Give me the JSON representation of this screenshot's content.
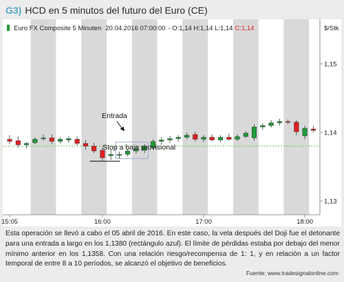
{
  "figure": {
    "number": "G3)",
    "title": "HCD en 5 minutos del futuro del Euro (CE)"
  },
  "chart_header": {
    "instrument": "Euro FX Composite 5 Minuten",
    "datetime": "20.04.2016 07:00:00",
    "ohlc_text": "- O:1,14 H:1,14 L:1,14",
    "close_text": "C:1,14",
    "unit": "$/Stk",
    "close_color": "#e02020"
  },
  "annotations": {
    "entry": "Entrada",
    "stop": "Stop a baja provisional"
  },
  "caption": "Esta operación se llevó a cabo el 05 abril de 2016. En este caso, la vela después del Doji fue el detonante para una entrada a largo en los 1,1380 (rectángulo azul). El límite de pérdidas estaba por debajo del menor mínimo anterior en los 1,1358. Con una relación riesgo/recompensa de 1: 1, y en relación a un factor temporal de entre 8 a 10 períodos, se alcanzó el objetivo de beneficios.",
  "source": "Fuente: www.tradesignalonline.com",
  "colors": {
    "up": "#1e9c3a",
    "down": "#e02020",
    "shade": "#d9d9d9",
    "reference_line": "#6fbf5a",
    "entry_box": "#9aa9d6"
  },
  "chart_data": {
    "type": "candlestick",
    "ylim": [
      1.128,
      1.1535
    ],
    "y_ticks": [
      1.13,
      1.14,
      1.15
    ],
    "y_tick_labels": [
      "1,13",
      "1,14",
      "1,15"
    ],
    "x_tick_labels": [
      "15:05",
      "16:00",
      "17:00",
      "18:00"
    ],
    "x_tick_bar_index": [
      0,
      11,
      23,
      35
    ],
    "shaded_bar_ranges": [
      [
        3,
        5
      ],
      [
        9,
        11
      ],
      [
        15,
        17
      ],
      [
        21,
        23
      ],
      [
        27,
        29
      ],
      [
        33,
        35
      ]
    ],
    "reference_level": 1.138,
    "stop_level": 1.1358,
    "entry_box_bars": [
      13,
      16
    ],
    "entry_box_range": [
      1.1362,
      1.1386
    ],
    "candles": [
      {
        "o": 1.139,
        "h": 1.1396,
        "l": 1.1383,
        "c": 1.1387
      },
      {
        "o": 1.1388,
        "h": 1.1394,
        "l": 1.1378,
        "c": 1.1382
      },
      {
        "o": 1.1382,
        "h": 1.1386,
        "l": 1.1377,
        "c": 1.1384
      },
      {
        "o": 1.1385,
        "h": 1.1393,
        "l": 1.1383,
        "c": 1.139
      },
      {
        "o": 1.1391,
        "h": 1.1397,
        "l": 1.1388,
        "c": 1.1392
      },
      {
        "o": 1.1392,
        "h": 1.1397,
        "l": 1.1383,
        "c": 1.1387
      },
      {
        "o": 1.1387,
        "h": 1.1393,
        "l": 1.1384,
        "c": 1.139
      },
      {
        "o": 1.1389,
        "h": 1.1394,
        "l": 1.1385,
        "c": 1.1391
      },
      {
        "o": 1.139,
        "h": 1.1394,
        "l": 1.1381,
        "c": 1.1384
      },
      {
        "o": 1.1384,
        "h": 1.1389,
        "l": 1.1375,
        "c": 1.138
      },
      {
        "o": 1.138,
        "h": 1.1385,
        "l": 1.137,
        "c": 1.1373
      },
      {
        "o": 1.1374,
        "h": 1.1378,
        "l": 1.1358,
        "c": 1.1363
      },
      {
        "o": 1.1366,
        "h": 1.1375,
        "l": 1.136,
        "c": 1.1368
      },
      {
        "o": 1.1368,
        "h": 1.1372,
        "l": 1.1362,
        "c": 1.1368
      },
      {
        "o": 1.1368,
        "h": 1.1376,
        "l": 1.1365,
        "c": 1.1373
      },
      {
        "o": 1.1373,
        "h": 1.138,
        "l": 1.1369,
        "c": 1.1376
      },
      {
        "o": 1.1374,
        "h": 1.1383,
        "l": 1.137,
        "c": 1.138
      },
      {
        "o": 1.1378,
        "h": 1.139,
        "l": 1.1376,
        "c": 1.1387
      },
      {
        "o": 1.1387,
        "h": 1.1393,
        "l": 1.1383,
        "c": 1.1389
      },
      {
        "o": 1.1389,
        "h": 1.1395,
        "l": 1.1385,
        "c": 1.1391
      },
      {
        "o": 1.1391,
        "h": 1.1396,
        "l": 1.1387,
        "c": 1.1393
      },
      {
        "o": 1.1393,
        "h": 1.14,
        "l": 1.139,
        "c": 1.1396
      },
      {
        "o": 1.1397,
        "h": 1.1401,
        "l": 1.1387,
        "c": 1.139
      },
      {
        "o": 1.139,
        "h": 1.1396,
        "l": 1.1386,
        "c": 1.1393
      },
      {
        "o": 1.1393,
        "h": 1.1397,
        "l": 1.1387,
        "c": 1.1389
      },
      {
        "o": 1.1389,
        "h": 1.1396,
        "l": 1.1386,
        "c": 1.1393
      },
      {
        "o": 1.1393,
        "h": 1.1398,
        "l": 1.1388,
        "c": 1.139
      },
      {
        "o": 1.139,
        "h": 1.1397,
        "l": 1.1387,
        "c": 1.1394
      },
      {
        "o": 1.1394,
        "h": 1.1402,
        "l": 1.1392,
        "c": 1.1399
      },
      {
        "o": 1.1392,
        "h": 1.1412,
        "l": 1.1388,
        "c": 1.1408
      },
      {
        "o": 1.1408,
        "h": 1.1413,
        "l": 1.1404,
        "c": 1.141
      },
      {
        "o": 1.141,
        "h": 1.1418,
        "l": 1.1407,
        "c": 1.1414
      },
      {
        "o": 1.1414,
        "h": 1.142,
        "l": 1.141,
        "c": 1.1416
      },
      {
        "o": 1.1416,
        "h": 1.1419,
        "l": 1.1412,
        "c": 1.1415
      },
      {
        "o": 1.1415,
        "h": 1.1418,
        "l": 1.1396,
        "c": 1.1401
      },
      {
        "o": 1.1395,
        "h": 1.141,
        "l": 1.139,
        "c": 1.1406
      },
      {
        "o": 1.1405,
        "h": 1.1409,
        "l": 1.14,
        "c": 1.1403
      }
    ]
  }
}
